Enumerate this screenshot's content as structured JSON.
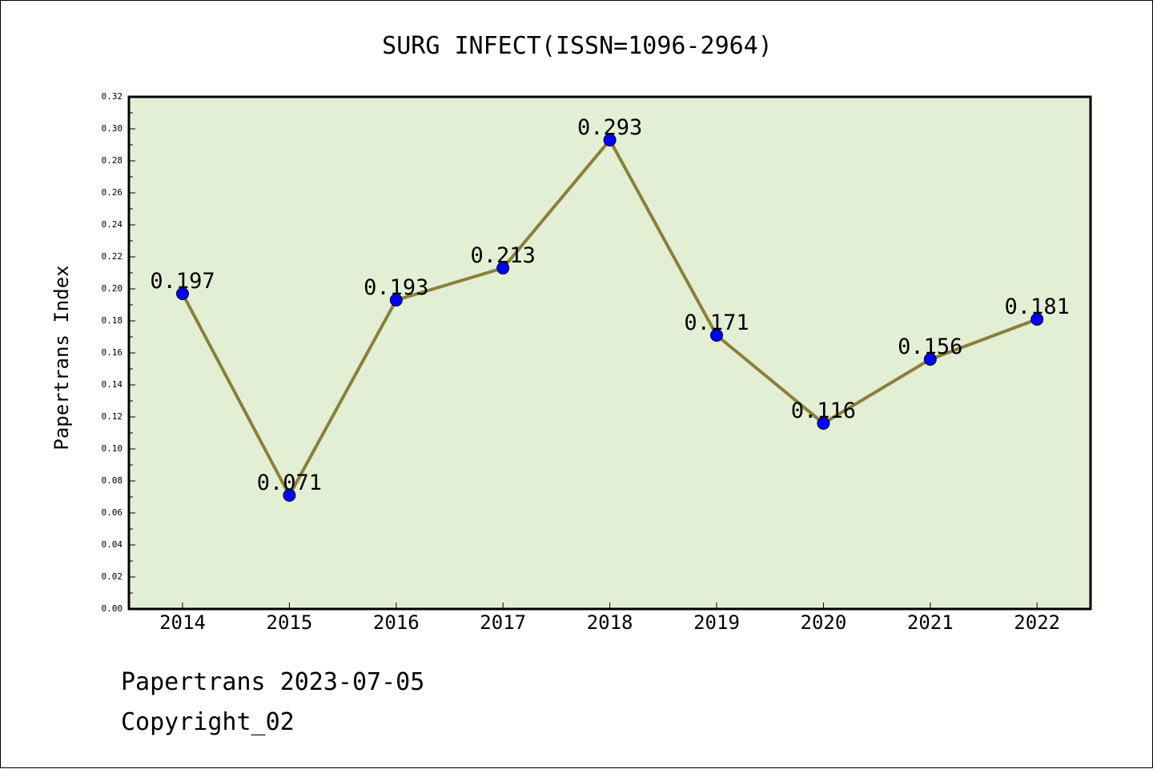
{
  "chart_data": {
    "type": "line",
    "title": "SURG INFECT(ISSN=1096-2964)",
    "xlabel": "",
    "ylabel": "Papertrans Index",
    "categories": [
      "2014",
      "2015",
      "2016",
      "2017",
      "2018",
      "2019",
      "2020",
      "2021",
      "2022"
    ],
    "series": [
      {
        "name": "Papertrans Index",
        "values": [
          0.197,
          0.071,
          0.193,
          0.213,
          0.293,
          0.171,
          0.116,
          0.156,
          0.181
        ],
        "labels": [
          "0.197",
          "0.071",
          "0.193",
          "0.213",
          "0.293",
          "0.171",
          "0.116",
          "0.156",
          "0.181"
        ]
      }
    ],
    "ylim": [
      0,
      0.32
    ],
    "yticks": [
      "0.00",
      "0.02",
      "0.04",
      "0.06",
      "0.08",
      "0.10",
      "0.12",
      "0.14",
      "0.16",
      "0.18",
      "0.20",
      "0.22",
      "0.24",
      "0.26",
      "0.28",
      "0.30",
      "0.32"
    ],
    "grid": false,
    "colors": {
      "plot_background": "#e2efd4",
      "line": "#8b7f3a",
      "marker": "#0000ff",
      "axes": "#000000"
    }
  },
  "footer": {
    "date_line": "Papertrans 2023-07-05",
    "copyright": "Copyright_02"
  }
}
